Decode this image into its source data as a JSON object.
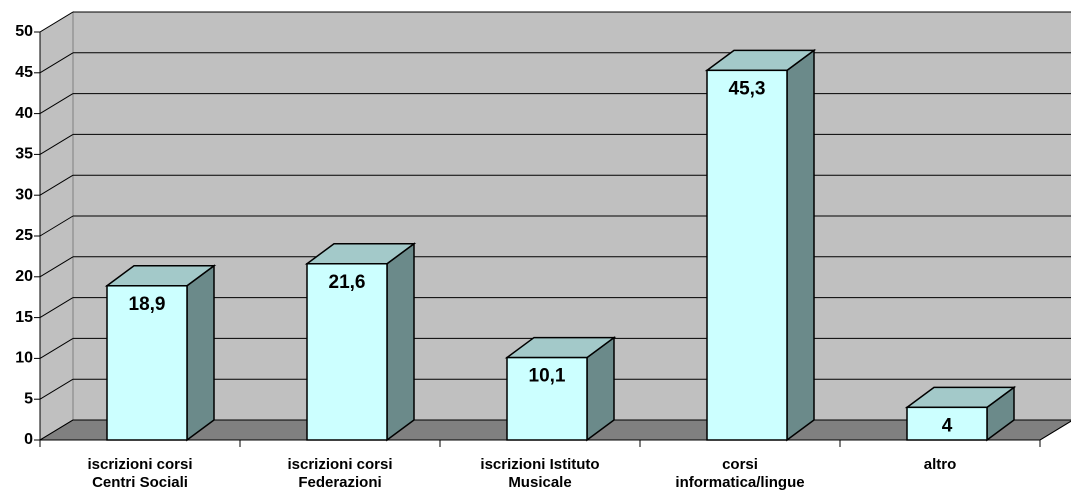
{
  "chart_data": {
    "type": "bar3d",
    "categories": [
      "iscrizioni corsi Centri Sociali",
      "iscrizioni corsi Federazioni",
      "iscrizioni Istituto Musicale",
      "corsi informatica/lingue",
      "altro"
    ],
    "values": [
      18.9,
      21.6,
      10.1,
      45.3,
      4
    ],
    "value_labels": [
      "18,9",
      "21,6",
      "10,1",
      "45,3",
      "4"
    ],
    "color": "#ccffff",
    "ylim": [
      0,
      50
    ],
    "yticks": [
      0,
      5,
      10,
      15,
      20,
      25,
      30,
      35,
      40,
      45,
      50
    ],
    "grid": true
  }
}
